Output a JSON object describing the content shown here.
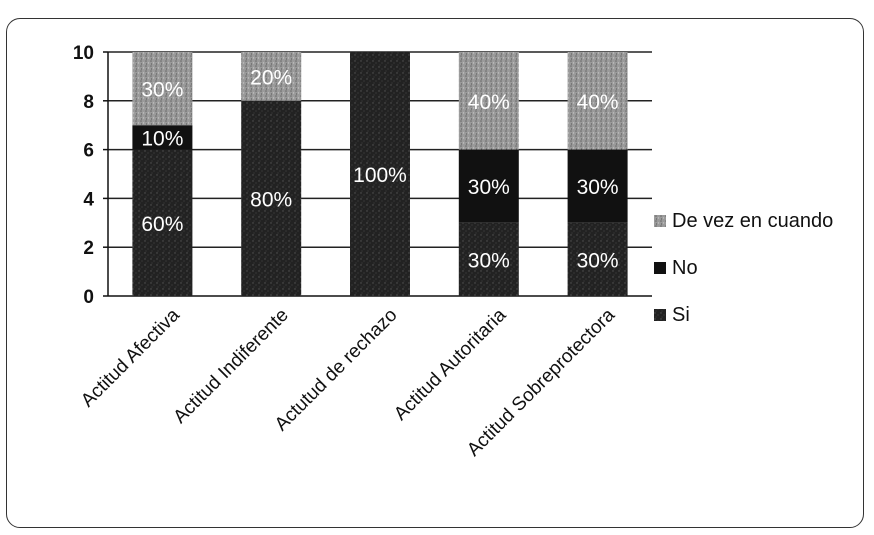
{
  "chart_data": {
    "type": "bar",
    "stacked": true,
    "categories": [
      "Actitud Afectiva",
      "Actitud Indiferente",
      "Actutud de rechazo",
      "Actitud Autoritaria",
      "Actitud Sobreprotectora"
    ],
    "series": [
      {
        "name": "Si",
        "values": [
          6,
          8,
          10,
          3,
          3
        ],
        "labels": [
          "60%",
          "80%",
          "100%",
          "30%",
          "30%"
        ],
        "color": "#2b2b2b"
      },
      {
        "name": "No",
        "values": [
          1,
          0,
          0,
          3,
          3
        ],
        "labels": [
          "10%",
          "",
          "",
          "30%",
          "30%"
        ],
        "color": "#1a1a1a"
      },
      {
        "name": "De vez en cuando",
        "values": [
          3,
          2,
          0,
          4,
          4
        ],
        "labels": [
          "30%",
          "20%",
          "",
          "40%",
          "40%"
        ],
        "color": "#8e8e8e"
      }
    ],
    "ylim": [
      0,
      10
    ],
    "yticks": [
      0,
      2,
      4,
      6,
      8,
      10
    ],
    "grid": true,
    "legend_position": "right"
  }
}
